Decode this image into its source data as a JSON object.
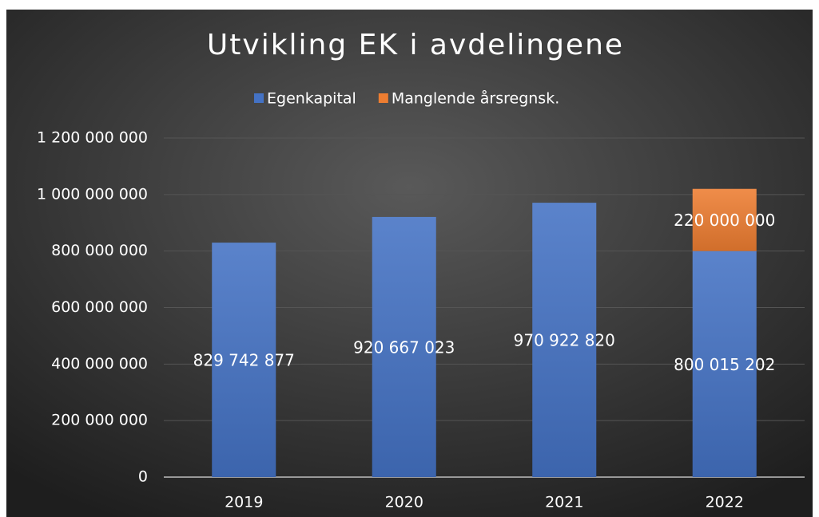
{
  "chart_data": {
    "type": "stacked_bar",
    "title": "Utvikling EK i avdelingene",
    "categories": [
      "2019",
      "2020",
      "2021",
      "2022"
    ],
    "series": [
      {
        "name": "Egenkapital",
        "color": "#4472c4",
        "values": [
          829742877,
          920667023,
          970922820,
          800015202
        ],
        "value_labels": [
          "829 742 877",
          "920 667 023",
          "970 922 820",
          "800 015 202"
        ]
      },
      {
        "name": "Manglende årsregnsk.",
        "color": "#ed7d31",
        "values": [
          null,
          null,
          null,
          220000000
        ],
        "value_labels": [
          null,
          null,
          null,
          "220 000 000"
        ]
      }
    ],
    "ylim": [
      0,
      1200000000
    ],
    "yticks": [
      0,
      {
        "value": 200000000,
        "label": "200 000 000"
      },
      {
        "value": 400000000,
        "label": "400 000 000"
      },
      {
        "value": 600000000,
        "label": "600 000 000"
      },
      {
        "value": 800000000,
        "label": "800 000 000"
      },
      {
        "value": 1000000000,
        "label": "1 000 000 000"
      },
      {
        "value": 1200000000,
        "label": "1 200 000 000"
      }
    ],
    "grid": true,
    "legend": "top"
  }
}
